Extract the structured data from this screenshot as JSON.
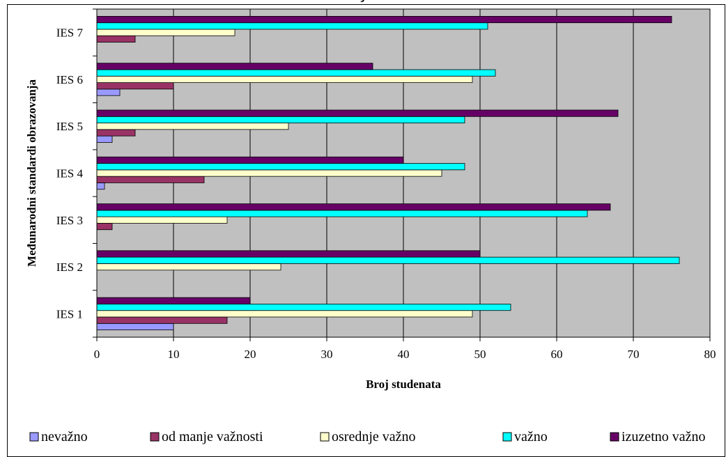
{
  "chart_data": {
    "type": "bar",
    "orientation": "horizontal",
    "title": "j",
    "xlabel": "Broj studenata",
    "ylabel": "Međunarodni standardi obrazovanja",
    "xlim": [
      0,
      80
    ],
    "x_ticks": [
      "0",
      "10",
      "20",
      "30",
      "40",
      "50",
      "60",
      "70",
      "80"
    ],
    "categories": [
      "IES 1",
      "IES 2",
      "IES 3",
      "IES 4",
      "IES 5",
      "IES 6",
      "IES 7"
    ],
    "grid": "vertical",
    "legend_position": "bottom",
    "plot_background": "#C0C0C0",
    "series": [
      {
        "name": "nevažno",
        "color": "#9999FF",
        "values": [
          10,
          0,
          0,
          1,
          2,
          3,
          0
        ]
      },
      {
        "name": "od manje važnosti",
        "color": "#993366",
        "values": [
          17,
          0,
          2,
          14,
          5,
          10,
          5
        ]
      },
      {
        "name": "osrednje važno",
        "color": "#FFFFCC",
        "values": [
          49,
          24,
          17,
          45,
          25,
          49,
          18
        ]
      },
      {
        "name": "važno",
        "color": "#00FFFF",
        "values": [
          54,
          76,
          64,
          48,
          48,
          52,
          51
        ]
      },
      {
        "name": "izuzetno važno",
        "color": "#660066",
        "values": [
          20,
          50,
          67,
          40,
          68,
          36,
          75
        ]
      }
    ]
  }
}
